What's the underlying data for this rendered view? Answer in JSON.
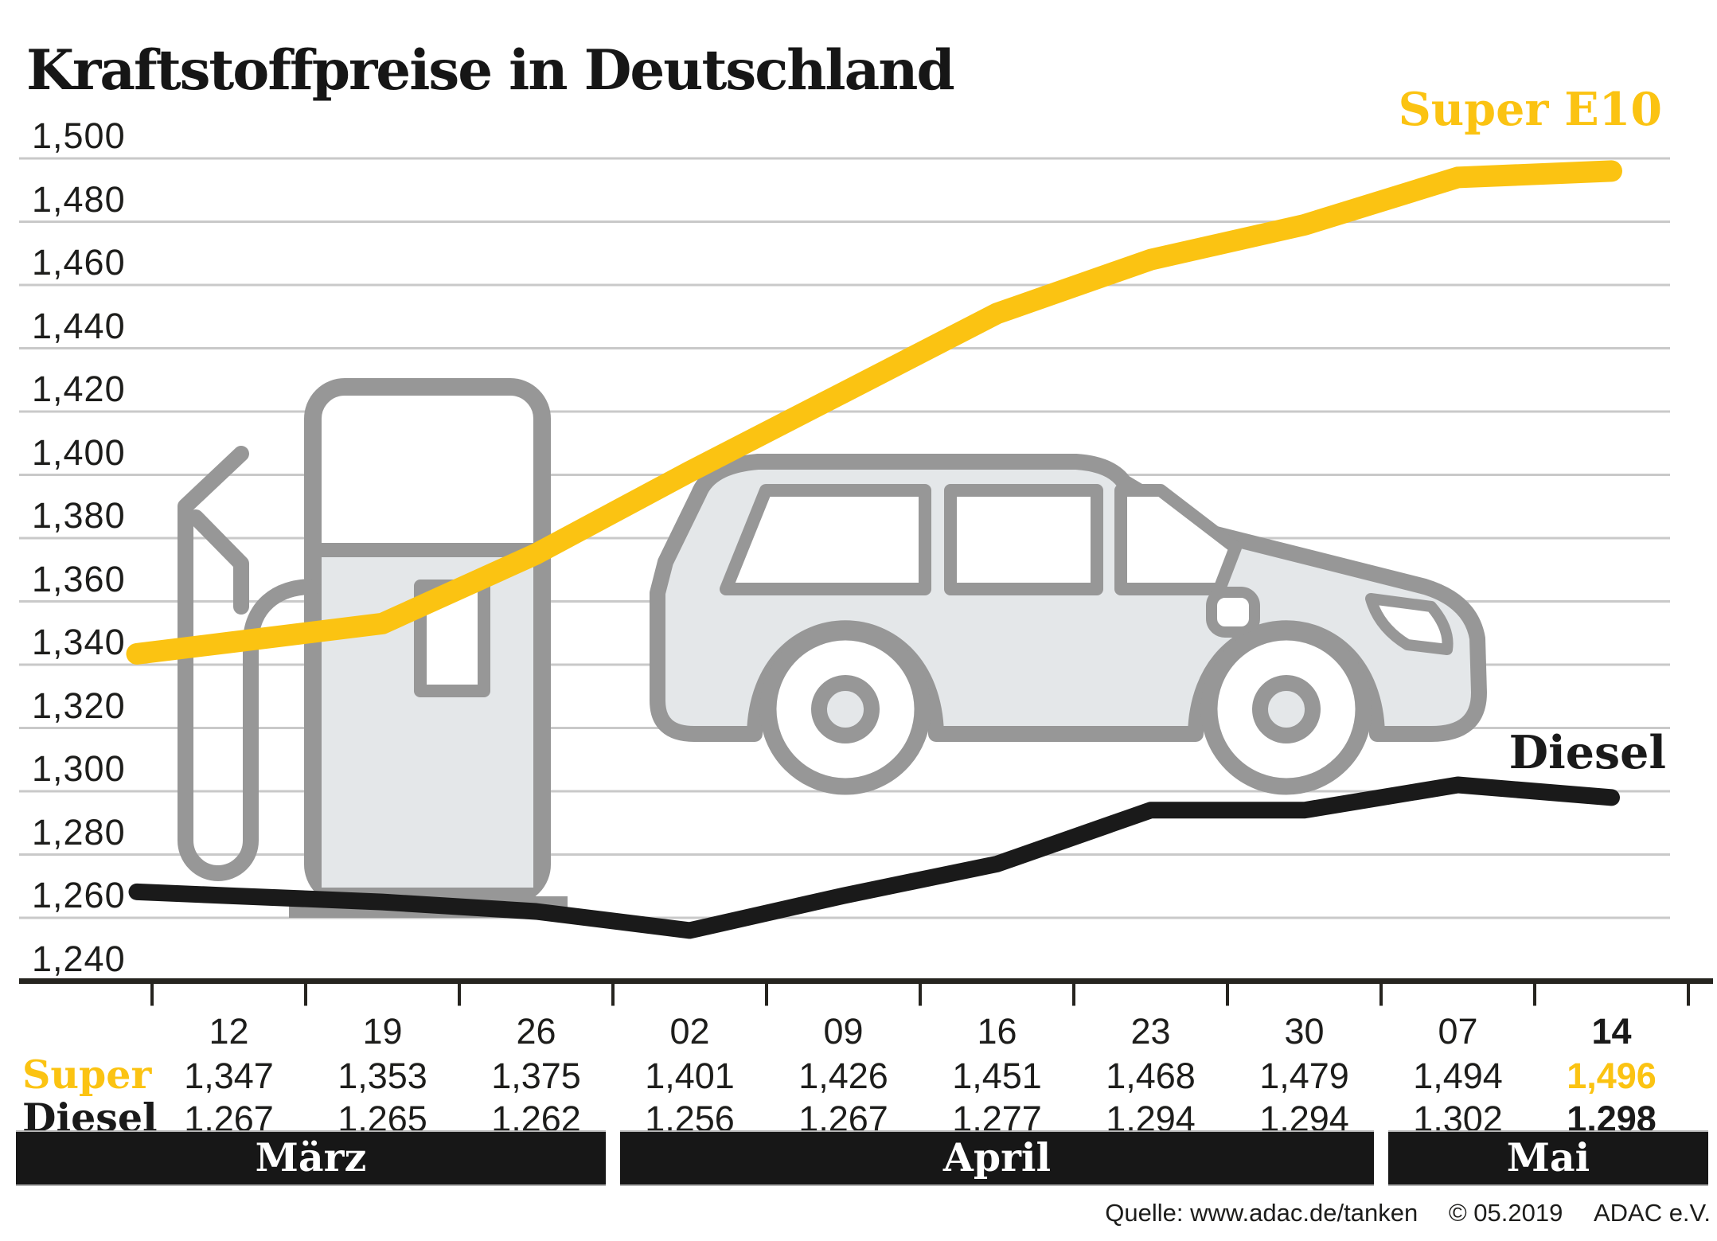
{
  "header": {
    "title": "Kraftstoffpreise in Deutschland"
  },
  "chart_data": {
    "type": "line",
    "title": "Kraftstoffpreise in Deutschland",
    "categories": [
      "12",
      "19",
      "26",
      "02",
      "09",
      "16",
      "23",
      "30",
      "07",
      "14"
    ],
    "series": [
      {
        "name": "Super E10",
        "table_label": "Super",
        "color": "#FBC312",
        "values": [
          1.347,
          1.353,
          1.375,
          1.401,
          1.426,
          1.451,
          1.468,
          1.479,
          1.494,
          1.496
        ]
      },
      {
        "name": "Diesel",
        "table_label": "Diesel",
        "color": "#1A1A1A",
        "values": [
          1.267,
          1.265,
          1.262,
          1.256,
          1.267,
          1.277,
          1.294,
          1.294,
          1.302,
          1.298
        ]
      }
    ],
    "xlabel": "",
    "ylabel": "",
    "ylim": [
      1.24,
      1.5
    ],
    "ytick_step": 0.02,
    "grid": true,
    "legend_position": "inline-right",
    "decimal_separator": ",",
    "months": [
      {
        "label": "März",
        "cols": [
          0,
          2
        ]
      },
      {
        "label": "April",
        "cols": [
          3,
          7
        ]
      },
      {
        "label": "Mai",
        "cols": [
          8,
          9
        ]
      }
    ]
  },
  "colors": {
    "accent_yellow": "#FBC312",
    "line_black": "#1A1A1A",
    "gridline": "#C9C9C9",
    "axis": "#26241F",
    "month_bar_bg": "#171717",
    "graphic_gray": "#979797",
    "graphic_fill": "#E4E7E9"
  },
  "source": {
    "prefix": "Quelle: www.adac.de/tanken",
    "copyright": "© 05.2019",
    "org": "ADAC e.V."
  }
}
